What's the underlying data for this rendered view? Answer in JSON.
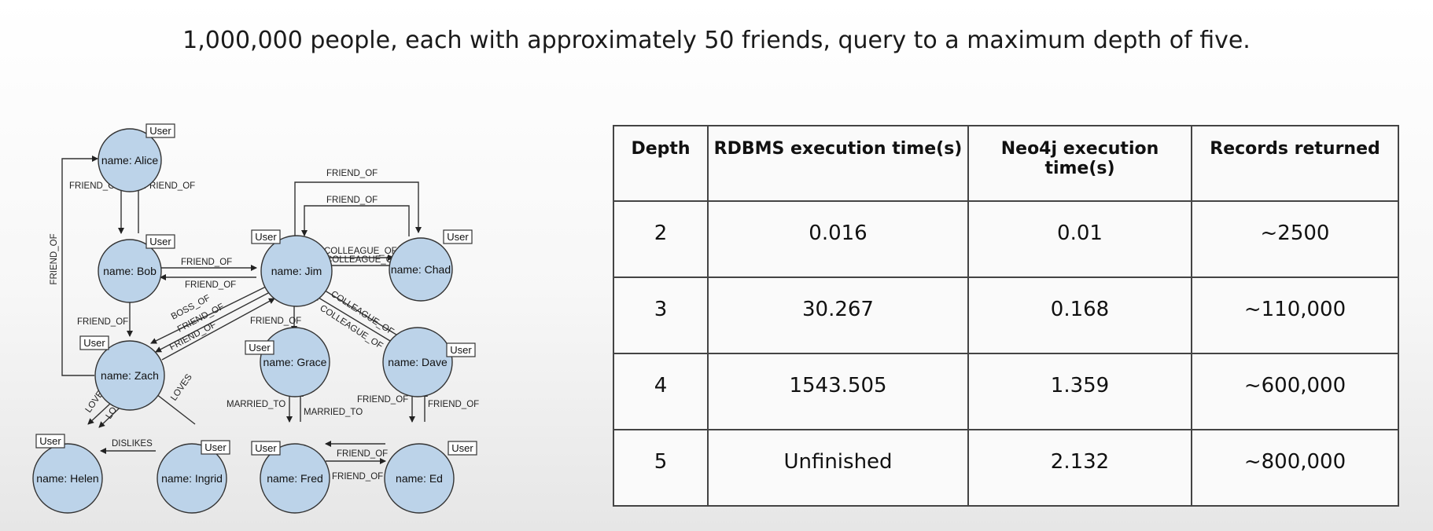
{
  "headline": "1,000,000 people, each with approximately 50 friends, query to a maximum depth of five.",
  "graph": {
    "node_tag": "User",
    "nodes": {
      "alice": "name: Alice",
      "bob": "name: Bob",
      "jim": "name: Jim",
      "chad": "name: Chad",
      "zach": "name: Zach",
      "grace": "name: Grace",
      "dave": "name: Dave",
      "helen": "name: Helen",
      "ingrid": "name: Ingrid",
      "fred": "name: Fred",
      "ed": "name: Ed"
    },
    "edges": {
      "friend_of": "FRIEND_OF",
      "colleague_of": "COLLEAGUE_OF",
      "boss_of": "BOSS_OF",
      "loves": "LOVES",
      "married_to": "MARRIED_TO",
      "dislikes": "DISLIKES"
    }
  },
  "table": {
    "headers": [
      "Depth",
      "RDBMS execution time(s)",
      "Neo4j execution time(s)",
      "Records returned"
    ],
    "rows": [
      [
        "2",
        "0.016",
        "0.01",
        "~2500"
      ],
      [
        "3",
        "30.267",
        "0.168",
        "~110,000"
      ],
      [
        "4",
        "1543.505",
        "1.359",
        "~600,000"
      ],
      [
        "5",
        "Unfinished",
        "2.132",
        "~800,000"
      ]
    ]
  }
}
